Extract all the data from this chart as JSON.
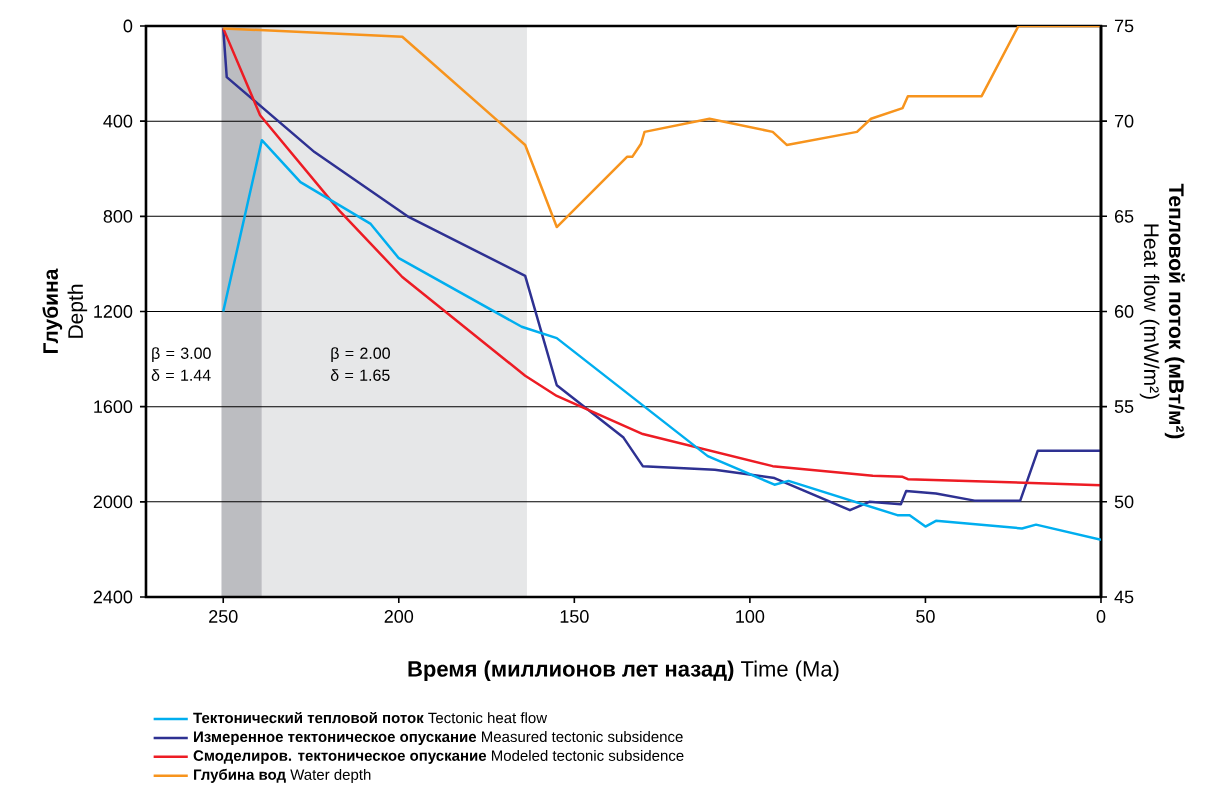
{
  "chart_data": {
    "type": "line",
    "xlabel": "**Время (миллионов лет назад)**   Time (Ma)",
    "ylabel": "**Глубина** Depth",
    "y2label": "**Тепловой поток (мВт/м²)** Heat flow (mW/m²)",
    "xlim": [
      272,
      0
    ],
    "xticks": [
      250,
      200,
      150,
      100,
      50,
      0
    ],
    "ylim": [
      2400,
      0
    ],
    "yticks": [
      0,
      400,
      800,
      1200,
      1600,
      2000,
      2400
    ],
    "y2lim": [
      45,
      75
    ],
    "y2ticks": [
      45,
      50,
      55,
      60,
      65,
      70,
      75
    ],
    "grid": "y",
    "legend": "bottom",
    "bands": [
      {
        "axis": "x",
        "from": 250.5,
        "to": 239,
        "color": "#bcbdc1",
        "label": "β = 3.00 δ = 1.44"
      },
      {
        "axis": "x",
        "from": 239,
        "to": 163.5,
        "color": "#e6e7e8",
        "label": "β = 2.00 δ = 1.65"
      }
    ],
    "series": [
      {
        "name": "**Тектонический тепловой поток**   Tectonic heat flow",
        "color": "#00aeef",
        "axis": "y2",
        "x": [
          250,
          239,
          228,
          208,
          200,
          165,
          155,
          112,
          93,
          89,
          58,
          54.5,
          50,
          47,
          22.5,
          18.5,
          0
        ],
        "values": [
          60,
          69,
          66.8,
          64.6,
          62.8,
          59.2,
          58.6,
          52.4,
          50.9,
          51.1,
          49.3,
          49.3,
          48.7,
          49,
          48.6,
          48.8,
          48
        ]
      },
      {
        "name": "**Измеренное тектоническое опускание**   Measured tectonic subsidence",
        "color": "#2e3192",
        "x": [
          250,
          249,
          224,
          197.5,
          164,
          155,
          136,
          130.5,
          110,
          93,
          71.5,
          66,
          57,
          55.5,
          47,
          36,
          23,
          18,
          0
        ],
        "values": [
          10,
          215,
          530,
          800,
          1050,
          1510,
          1730,
          1850,
          1865,
          1900,
          2035,
          2000,
          2010,
          1955,
          1965,
          1995,
          1995,
          1785,
          1785
        ]
      },
      {
        "name": "**Смоделиров. тектоническое опускание**   Modeled tectonic subsidence",
        "color": "#ed1c24",
        "x": [
          250,
          239.5,
          217,
          199,
          164,
          155,
          130.5,
          93.5,
          65,
          56.5,
          55,
          0
        ],
        "values": [
          10,
          375,
          775,
          1055,
          1470,
          1555,
          1715,
          1850,
          1890,
          1895,
          1905,
          1930
        ]
      },
      {
        "name": "**Глубина вод**   Water depth",
        "color": "#f7941d",
        "x": [
          250,
          199,
          164,
          155,
          135,
          133.5,
          131,
          130,
          111.5,
          93.5,
          89.5,
          69.5,
          65.5,
          56.5,
          55,
          34,
          23.5,
          0
        ],
        "values": [
          10,
          45,
          500,
          845,
          550,
          550,
          495,
          445,
          390,
          445,
          500,
          445,
          390,
          345,
          295,
          295,
          0,
          0
        ]
      }
    ]
  }
}
